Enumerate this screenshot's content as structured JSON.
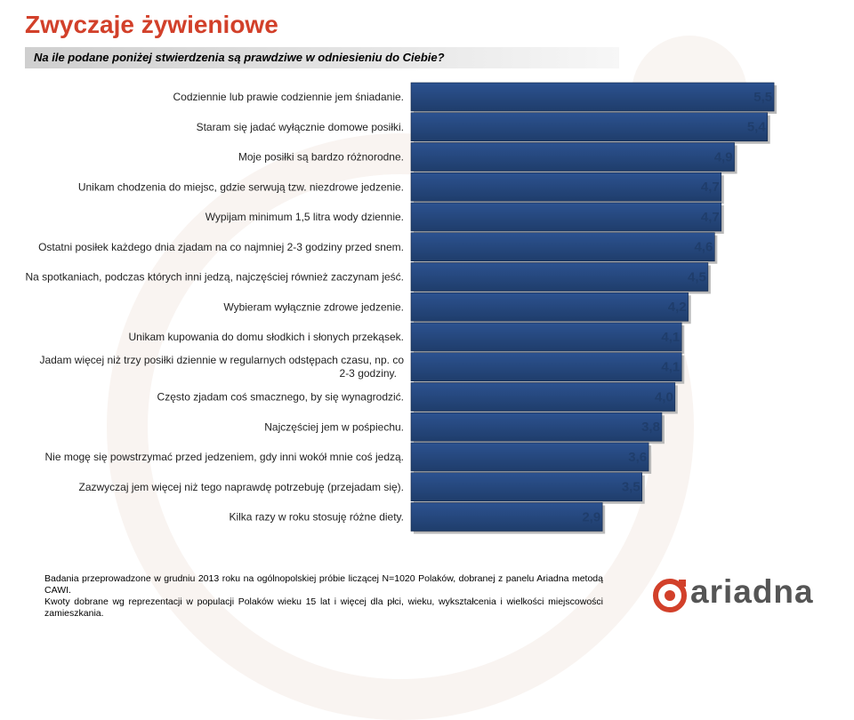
{
  "title": "Zwyczaje żywieniowe",
  "subtitle": "Na ile podane poniżej stwierdzenia są prawdziwe w odniesieniu do Ciebie?",
  "chart_data": {
    "type": "bar",
    "orientation": "horizontal",
    "categories": [
      "Codziennie lub prawie codziennie jem śniadanie.",
      "Staram się jadać wyłącznie domowe posiłki.",
      "Moje posiłki są bardzo różnorodne.",
      "Unikam chodzenia do miejsc, gdzie serwują tzw. niezdrowe jedzenie.",
      "Wypijam minimum 1,5 litra wody dziennie.",
      "Ostatni posiłek każdego dnia zjadam na co najmniej 2-3 godziny przed snem.",
      "Na spotkaniach, podczas których inni jedzą, najczęściej również zaczynam jeść.",
      "Wybieram wyłącznie zdrowe jedzenie.",
      "Unikam kupowania do domu słodkich i słonych przekąsek.",
      "Jadam więcej niż trzy posiłki dziennie w regularnych odstępach czasu, np. co 2-3 godziny.",
      "Często zjadam coś smacznego, by się wynagrodzić.",
      "Najczęściej jem w pośpiechu.",
      "Nie mogę się powstrzymać przed jedzeniem, gdy inni wokół mnie coś jedzą.",
      "Zazwyczaj jem więcej niż tego naprawdę potrzebuję (przejadam się).",
      "Kilka razy w roku stosuję różne diety."
    ],
    "values": [
      5.5,
      5.4,
      4.9,
      4.7,
      4.7,
      4.6,
      4.5,
      4.2,
      4.1,
      4.1,
      4.0,
      3.8,
      3.6,
      3.5,
      2.9
    ],
    "value_labels": [
      "5,5",
      "5,4",
      "4,9",
      "4,7",
      "4,7",
      "4,6",
      "4,5",
      "4,2",
      "4,1",
      "4,1",
      "4,0",
      "3,8",
      "3,6",
      "3,5",
      "2,9"
    ],
    "bar_color": "#1f3d6b",
    "label_color": "#1f3d6b"
  },
  "footer": {
    "line1": "Badania przeprowadzone w grudniu 2013 roku na ogólnopolskiej próbie liczącej N=1020 Polaków, dobranej z panelu Ariadna metodą CAWI.",
    "line2": "Kwoty dobrane wg reprezentacji w populacji Polaków wieku 15 lat i więcej dla płci, wieku, wykształcenia i wielkości miejscowości zamieszkania."
  },
  "logo": {
    "text": "ariadna",
    "icon": "ariadna-logo-icon",
    "accent": "#d2402a"
  }
}
